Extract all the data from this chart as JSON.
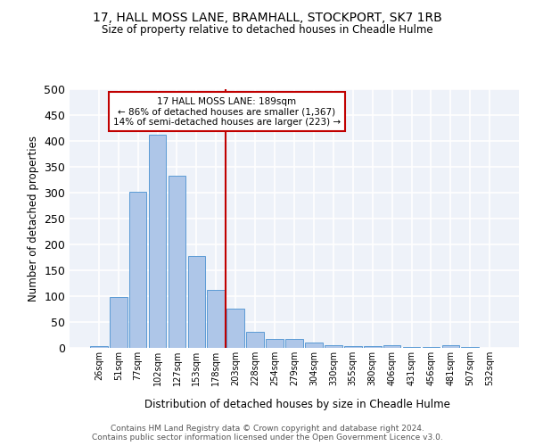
{
  "title": "17, HALL MOSS LANE, BRAMHALL, STOCKPORT, SK7 1RB",
  "subtitle": "Size of property relative to detached houses in Cheadle Hulme",
  "xlabel": "Distribution of detached houses by size in Cheadle Hulme",
  "ylabel": "Number of detached properties",
  "bin_labels": [
    "26sqm",
    "51sqm",
    "77sqm",
    "102sqm",
    "127sqm",
    "153sqm",
    "178sqm",
    "203sqm",
    "228sqm",
    "254sqm",
    "279sqm",
    "304sqm",
    "330sqm",
    "355sqm",
    "380sqm",
    "406sqm",
    "431sqm",
    "456sqm",
    "481sqm",
    "507sqm",
    "532sqm"
  ],
  "bar_heights": [
    3,
    99,
    302,
    412,
    333,
    178,
    112,
    76,
    31,
    18,
    18,
    10,
    5,
    3,
    3,
    5,
    1,
    2,
    5,
    1,
    0
  ],
  "bar_color": "#aec6e8",
  "bar_edge_color": "#5b9bd5",
  "vline_x": 6.5,
  "vline_color": "#c00000",
  "annotation_text": "17 HALL MOSS LANE: 189sqm\n← 86% of detached houses are smaller (1,367)\n14% of semi-detached houses are larger (223) →",
  "annotation_box_color": "#c00000",
  "ylim": [
    0,
    500
  ],
  "yticks": [
    0,
    50,
    100,
    150,
    200,
    250,
    300,
    350,
    400,
    450,
    500
  ],
  "background_color": "#eef2f9",
  "grid_color": "#ffffff",
  "footer_line1": "Contains HM Land Registry data © Crown copyright and database right 2024.",
  "footer_line2": "Contains public sector information licensed under the Open Government Licence v3.0."
}
